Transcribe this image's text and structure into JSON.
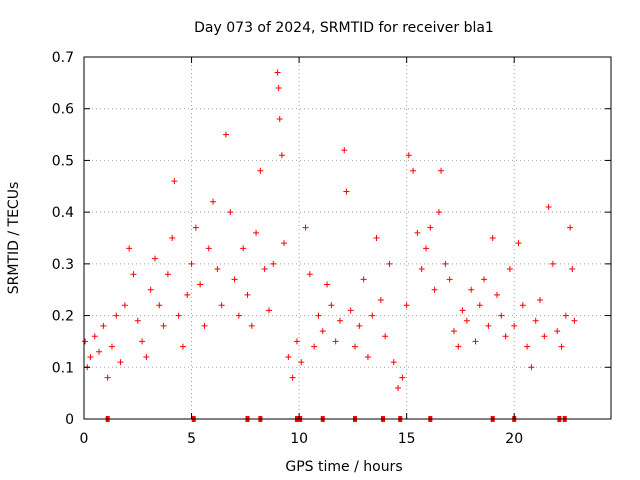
{
  "chart_data": {
    "type": "scatter",
    "title": "Day 073 of 2024, SRMTID for receiver bla1",
    "xlabel": "GPS time / hours",
    "ylabel": "SRMTID / TECUs",
    "xlim": [
      0,
      24.5
    ],
    "ylim": [
      0,
      0.7
    ],
    "grid": true,
    "marker": "+",
    "color": "#ff0000",
    "x_ticks": [
      {
        "value": 0,
        "label": "0"
      },
      {
        "value": 5,
        "label": "5"
      },
      {
        "value": 10,
        "label": "10"
      },
      {
        "value": 15,
        "label": "15"
      },
      {
        "value": 20,
        "label": "20"
      }
    ],
    "y_ticks": [
      {
        "value": 0,
        "label": "0"
      },
      {
        "value": 0.1,
        "label": "0.1"
      },
      {
        "value": 0.2,
        "label": "0.2"
      },
      {
        "value": 0.3,
        "label": "0.3"
      },
      {
        "value": 0.4,
        "label": "0.4"
      },
      {
        "value": 0.5,
        "label": "0.5"
      },
      {
        "value": 0.6,
        "label": "0.6"
      },
      {
        "value": 0.7,
        "label": "0.7"
      }
    ],
    "series": [
      {
        "name": "SRMTID",
        "points": [
          [
            0.05,
            0.15
          ],
          [
            0.15,
            0.1
          ],
          [
            0.3,
            0.12
          ],
          [
            0.5,
            0.16
          ],
          [
            0.7,
            0.13
          ],
          [
            0.9,
            0.18
          ],
          [
            1.1,
            0.08
          ],
          [
            1.3,
            0.14
          ],
          [
            1.5,
            0.2
          ],
          [
            1.7,
            0.11
          ],
          [
            1.9,
            0.22
          ],
          [
            2.1,
            0.33
          ],
          [
            2.3,
            0.28
          ],
          [
            2.5,
            0.19
          ],
          [
            2.7,
            0.15
          ],
          [
            2.9,
            0.12
          ],
          [
            3.1,
            0.25
          ],
          [
            3.3,
            0.31
          ],
          [
            3.5,
            0.22
          ],
          [
            3.7,
            0.18
          ],
          [
            3.9,
            0.28
          ],
          [
            4.1,
            0.35
          ],
          [
            4.2,
            0.46
          ],
          [
            4.4,
            0.2
          ],
          [
            4.6,
            0.14
          ],
          [
            4.8,
            0.24
          ],
          [
            5.0,
            0.3
          ],
          [
            5.2,
            0.37
          ],
          [
            5.4,
            0.26
          ],
          [
            5.6,
            0.18
          ],
          [
            5.8,
            0.33
          ],
          [
            6.0,
            0.42
          ],
          [
            6.2,
            0.29
          ],
          [
            6.4,
            0.22
          ],
          [
            6.6,
            0.55
          ],
          [
            6.8,
            0.4
          ],
          [
            7.0,
            0.27
          ],
          [
            7.2,
            0.2
          ],
          [
            7.4,
            0.33
          ],
          [
            7.6,
            0.24
          ],
          [
            7.8,
            0.18
          ],
          [
            8.0,
            0.36
          ],
          [
            8.2,
            0.48
          ],
          [
            8.4,
            0.29
          ],
          [
            8.6,
            0.21
          ],
          [
            8.8,
            0.3
          ],
          [
            9.0,
            0.67
          ],
          [
            9.05,
            0.64
          ],
          [
            9.1,
            0.58
          ],
          [
            9.2,
            0.51
          ],
          [
            9.3,
            0.34
          ],
          [
            9.5,
            0.12
          ],
          [
            9.7,
            0.08
          ],
          [
            9.9,
            0.15
          ],
          [
            10.1,
            0.11
          ],
          [
            10.3,
            0.37
          ],
          [
            10.5,
            0.28
          ],
          [
            10.7,
            0.14
          ],
          [
            10.9,
            0.2
          ],
          [
            11.1,
            0.17
          ],
          [
            11.3,
            0.26
          ],
          [
            11.5,
            0.22
          ],
          [
            11.7,
            0.15
          ],
          [
            11.9,
            0.19
          ],
          [
            12.1,
            0.52
          ],
          [
            12.2,
            0.44
          ],
          [
            12.4,
            0.21
          ],
          [
            12.6,
            0.14
          ],
          [
            12.8,
            0.18
          ],
          [
            13.0,
            0.27
          ],
          [
            13.2,
            0.12
          ],
          [
            13.4,
            0.2
          ],
          [
            13.6,
            0.35
          ],
          [
            13.8,
            0.23
          ],
          [
            14.0,
            0.16
          ],
          [
            14.2,
            0.3
          ],
          [
            14.4,
            0.11
          ],
          [
            14.6,
            0.06
          ],
          [
            14.8,
            0.08
          ],
          [
            15.0,
            0.22
          ],
          [
            15.1,
            0.51
          ],
          [
            15.3,
            0.48
          ],
          [
            15.5,
            0.36
          ],
          [
            15.7,
            0.29
          ],
          [
            15.9,
            0.33
          ],
          [
            16.1,
            0.37
          ],
          [
            16.3,
            0.25
          ],
          [
            16.5,
            0.4
          ],
          [
            16.6,
            0.48
          ],
          [
            16.8,
            0.3
          ],
          [
            17.0,
            0.27
          ],
          [
            17.2,
            0.17
          ],
          [
            17.4,
            0.14
          ],
          [
            17.6,
            0.21
          ],
          [
            17.8,
            0.19
          ],
          [
            18.0,
            0.25
          ],
          [
            18.2,
            0.15
          ],
          [
            18.4,
            0.22
          ],
          [
            18.6,
            0.27
          ],
          [
            18.8,
            0.18
          ],
          [
            19.0,
            0.35
          ],
          [
            19.2,
            0.24
          ],
          [
            19.4,
            0.2
          ],
          [
            19.6,
            0.16
          ],
          [
            19.8,
            0.29
          ],
          [
            20.0,
            0.18
          ],
          [
            20.2,
            0.34
          ],
          [
            20.4,
            0.22
          ],
          [
            20.6,
            0.14
          ],
          [
            20.8,
            0.1
          ],
          [
            21.0,
            0.19
          ],
          [
            21.2,
            0.23
          ],
          [
            21.4,
            0.16
          ],
          [
            21.6,
            0.41
          ],
          [
            21.8,
            0.3
          ],
          [
            22.0,
            0.17
          ],
          [
            22.2,
            0.14
          ],
          [
            22.4,
            0.2
          ],
          [
            22.6,
            0.37
          ],
          [
            22.7,
            0.29
          ],
          [
            22.8,
            0.19
          ]
        ]
      }
    ],
    "missing_data_markers_x": [
      1.1,
      5.1,
      7.6,
      8.2,
      9.9,
      10.05,
      11.1,
      12.6,
      13.9,
      14.7,
      16.1,
      19.0,
      20.0,
      22.1,
      22.35
    ]
  }
}
